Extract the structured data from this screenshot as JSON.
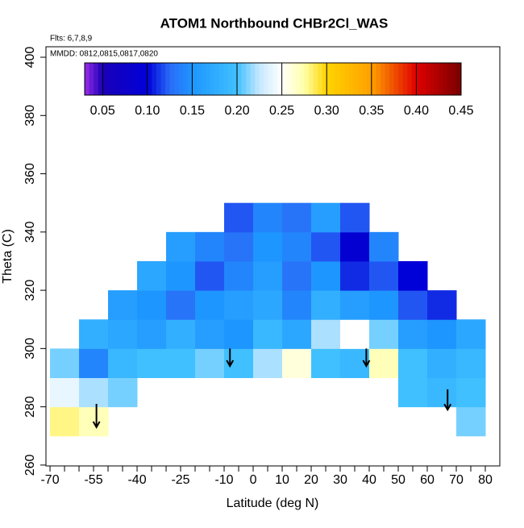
{
  "chart_data": {
    "type": "heatmap",
    "title": "ATOM1 Northbound CHBr2Cl_WAS",
    "annotations": [
      "Flts: 6,7,8,9",
      "MMDD: 0812,0815,0817,0820"
    ],
    "x_label": "Latitude (deg N)",
    "y_label": "Theta (C)",
    "xlim": [
      -71.4,
      85
    ],
    "ylim": [
      259.7,
      403.6
    ],
    "xticks": [
      -70,
      -55,
      -40,
      -25,
      -10,
      0,
      10,
      20,
      30,
      40,
      50,
      60,
      70,
      80
    ],
    "xminor_ticks": [
      -65,
      -60,
      -50,
      -45,
      -35,
      -30,
      -20,
      -15,
      -5,
      5,
      15,
      25,
      35,
      45,
      55,
      65,
      75
    ],
    "yticks": [
      260,
      280,
      300,
      320,
      340,
      360,
      380,
      400
    ],
    "x": [
      -65,
      -55,
      -45,
      -35,
      -25,
      -15,
      -5,
      5,
      15,
      25,
      35,
      45,
      55,
      65,
      75
    ],
    "y": [
      275,
      285,
      295,
      305,
      315,
      325,
      335,
      345
    ],
    "cell_width": 10,
    "cell_height": 10,
    "values": [
      [
        0.28,
        0.27,
        null,
        null,
        null,
        null,
        null,
        null,
        null,
        null,
        null,
        null,
        null,
        null,
        0.21
      ],
      [
        0.24,
        0.22,
        0.21,
        null,
        null,
        null,
        null,
        null,
        null,
        null,
        null,
        null,
        0.2,
        0.19,
        0.2
      ],
      [
        0.21,
        0.14,
        0.19,
        0.2,
        0.2,
        0.21,
        0.2,
        0.22,
        0.26,
        0.2,
        0.19,
        0.27,
        0.2,
        0.18,
        0.19
      ],
      [
        null,
        0.18,
        0.17,
        0.16,
        0.18,
        0.16,
        0.15,
        0.19,
        0.17,
        0.22,
        0.25,
        0.21,
        0.16,
        0.15,
        0.17
      ],
      [
        null,
        null,
        0.16,
        0.15,
        0.13,
        0.15,
        0.16,
        0.17,
        0.14,
        0.18,
        0.16,
        0.15,
        0.12,
        0.11,
        null
      ],
      [
        null,
        null,
        null,
        0.17,
        0.15,
        0.12,
        0.14,
        0.16,
        0.13,
        0.15,
        0.11,
        0.12,
        0.1,
        null,
        null
      ],
      [
        null,
        null,
        null,
        null,
        0.16,
        0.14,
        0.13,
        0.15,
        0.14,
        0.12,
        0.09,
        0.14,
        null,
        null,
        null
      ],
      [
        null,
        null,
        null,
        null,
        null,
        null,
        0.12,
        0.14,
        0.13,
        0.16,
        0.12,
        null,
        null,
        null,
        null
      ]
    ],
    "colorlim": [
      0.03,
      0.45
    ],
    "colorticks": [
      0.05,
      0.1,
      0.15,
      0.2,
      0.25,
      0.3,
      0.35,
      0.4,
      0.45
    ],
    "colorbar_ticks_labels": [
      "0.05",
      "0.10",
      "0.15",
      "0.20",
      "0.25",
      "0.30",
      "0.35",
      "0.40",
      "0.45"
    ],
    "colorscale": [
      [
        0.03,
        "#9a2be8"
      ],
      [
        0.05,
        "#1a00b8"
      ],
      [
        0.1,
        "#0000d8"
      ],
      [
        0.125,
        "#2a6cf8"
      ],
      [
        0.15,
        "#1e96ff"
      ],
      [
        0.2,
        "#40c0ff"
      ],
      [
        0.225,
        "#c6e8ff"
      ],
      [
        0.25,
        "#ffffff"
      ],
      [
        0.275,
        "#ffffa8"
      ],
      [
        0.3,
        "#ffd400"
      ],
      [
        0.35,
        "#ffa000"
      ],
      [
        0.4,
        "#e00000"
      ],
      [
        0.45,
        "#780000"
      ]
    ],
    "arrows": [
      {
        "x": -54,
        "from": 281,
        "to": 273
      },
      {
        "x": -8,
        "from": 300,
        "to": 294
      },
      {
        "x": 39,
        "from": 300,
        "to": 294
      },
      {
        "x": 67,
        "from": 286,
        "to": 279
      }
    ]
  }
}
